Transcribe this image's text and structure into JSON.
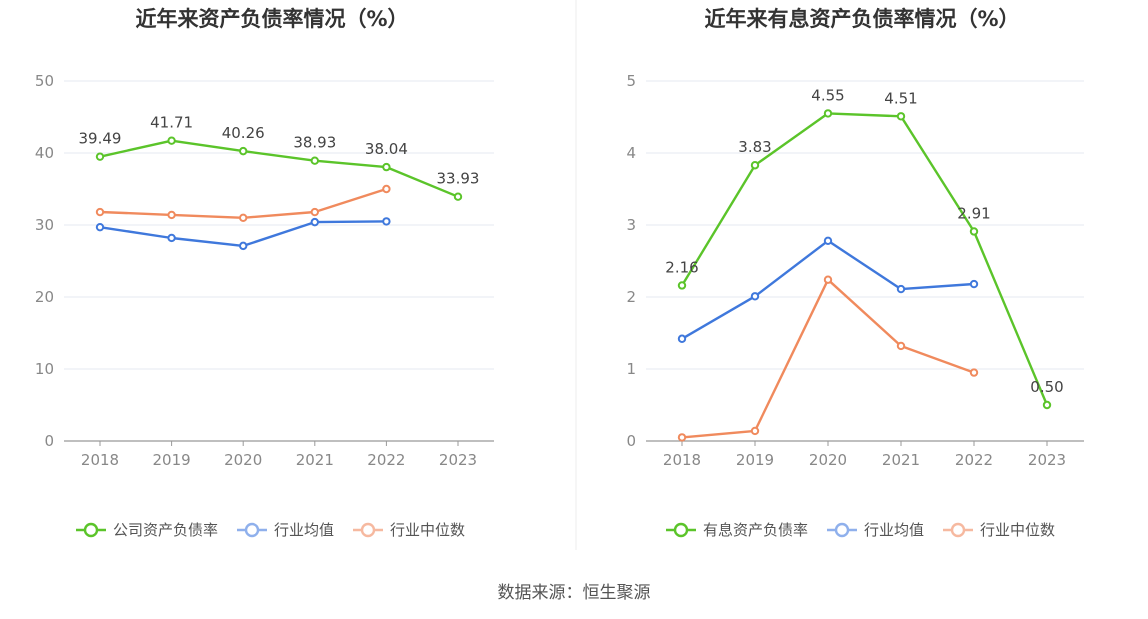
{
  "chart_data": [
    {
      "type": "line",
      "title": "近年来资产负债率情况（%）",
      "categories": [
        "2018",
        "2019",
        "2020",
        "2021",
        "2022",
        "2023"
      ],
      "ylim": [
        0,
        50
      ],
      "yticks": [
        0,
        10,
        20,
        30,
        40,
        50
      ],
      "grid": true,
      "legend_position": "bottom",
      "series": [
        {
          "name": "公司资产负债率",
          "color": "#5bc42a",
          "values": [
            39.49,
            41.71,
            40.26,
            38.93,
            38.04,
            33.93
          ],
          "labels": [
            "39.49",
            "41.71",
            "40.26",
            "38.93",
            "38.04",
            "33.93"
          ]
        },
        {
          "name": "行业均值",
          "color": "#3f78dc",
          "values": [
            29.7,
            28.2,
            27.1,
            30.4,
            30.5,
            null
          ]
        },
        {
          "name": "行业中位数",
          "color": "#f08a5d",
          "values": [
            31.8,
            31.4,
            31.0,
            31.8,
            35.0,
            null
          ]
        }
      ]
    },
    {
      "type": "line",
      "title": "近年来有息资产负债率情况（%）",
      "categories": [
        "2018",
        "2019",
        "2020",
        "2021",
        "2022",
        "2023"
      ],
      "ylim": [
        0,
        5
      ],
      "yticks": [
        0,
        1,
        2,
        3,
        4,
        5
      ],
      "grid": true,
      "legend_position": "bottom",
      "series": [
        {
          "name": "有息资产负债率",
          "color": "#5bc42a",
          "values": [
            2.16,
            3.83,
            4.55,
            4.51,
            2.91,
            0.5
          ],
          "labels": [
            "2.16",
            "3.83",
            "4.55",
            "4.51",
            "2.91",
            "0.50"
          ]
        },
        {
          "name": "行业均值",
          "color": "#3f78dc",
          "values": [
            1.42,
            2.01,
            2.78,
            2.11,
            2.18,
            null
          ]
        },
        {
          "name": "行业中位数",
          "color": "#f08a5d",
          "values": [
            0.05,
            0.14,
            2.24,
            1.32,
            0.95,
            null
          ]
        }
      ]
    }
  ],
  "legend_colors": [
    "#5bc42a",
    "#8fb0ec",
    "#f6b9a0"
  ],
  "source": "数据来源：恒生聚源"
}
